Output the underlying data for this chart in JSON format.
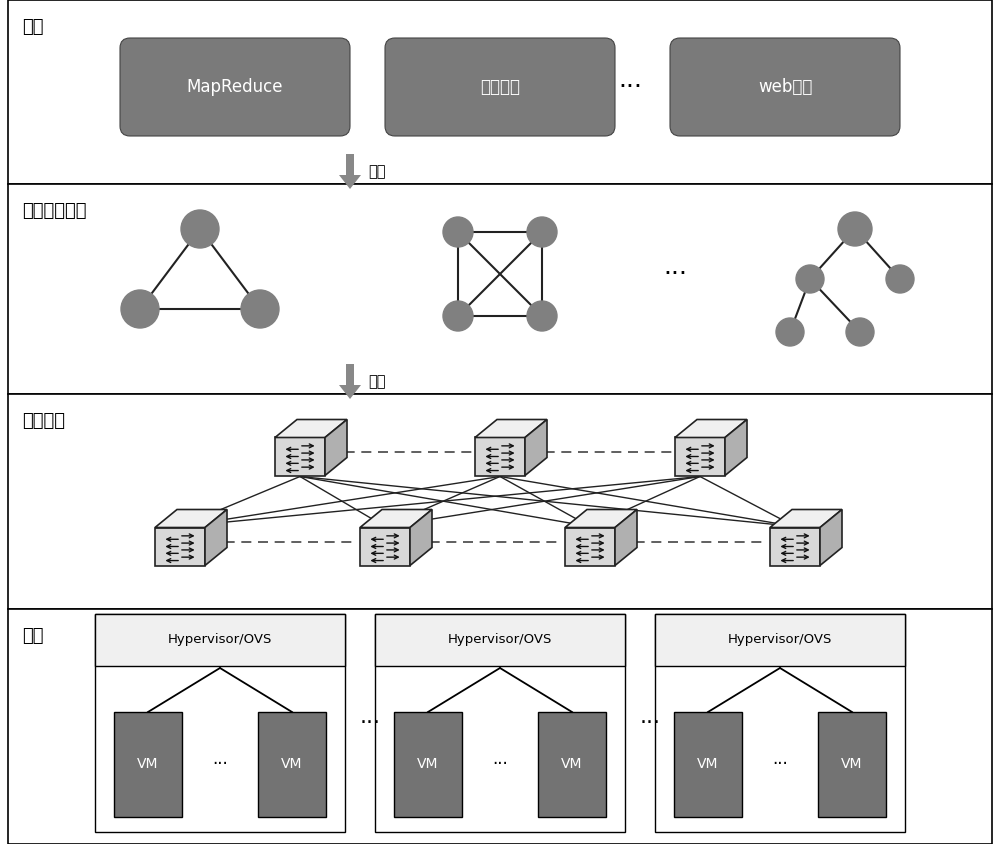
{
  "bg_color": "#ffffff",
  "node_color": "#808080",
  "app_box_color": "#7a7a7a",
  "vm_color": "#737373",
  "hyp_color": "#f2f2f2",
  "section_labels": [
    "应用",
    "节点通信关系",
    "物理网络",
    "主机"
  ],
  "app_items": [
    "MapReduce",
    "推荐系统",
    "web服务"
  ],
  "arrow_labels": [
    "抽象",
    "映射"
  ],
  "section_tops": [
    8.44,
    6.6,
    4.5,
    2.35,
    0.0
  ]
}
